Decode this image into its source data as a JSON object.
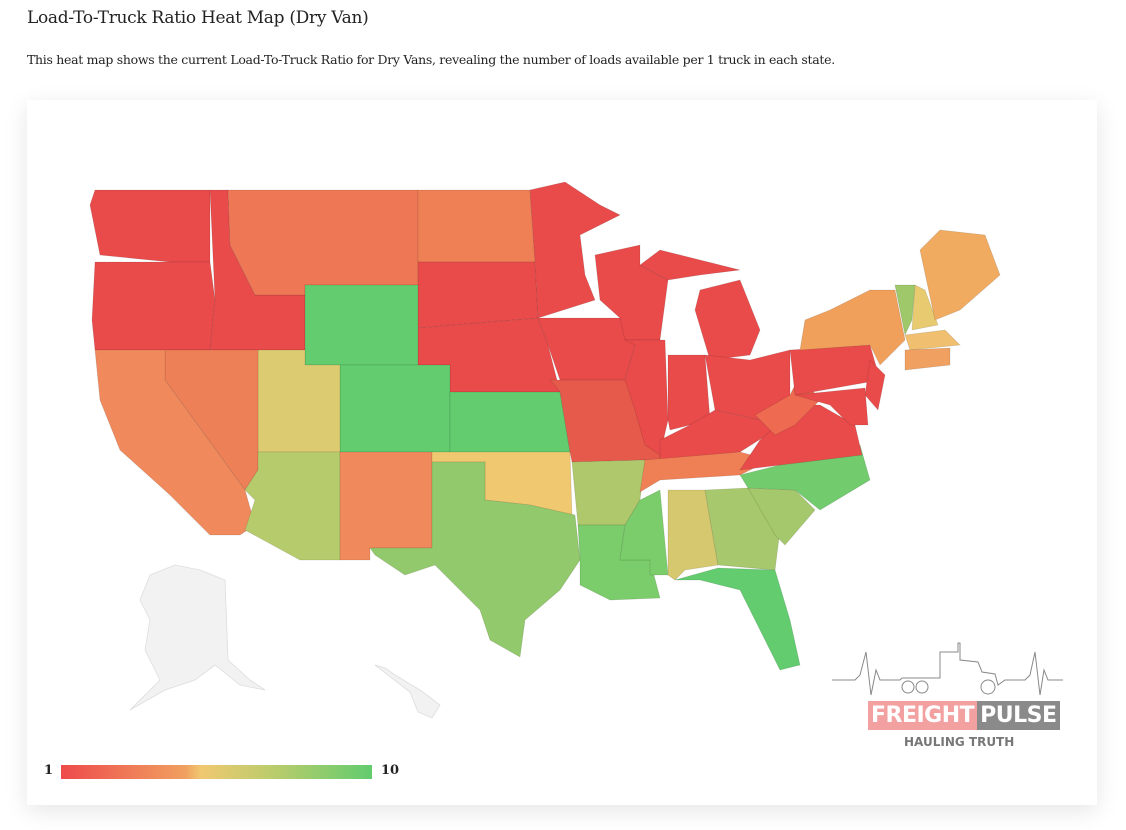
{
  "header": {
    "title": "Load-To-Truck Ratio Heat Map (Dry Van)",
    "description": "This heat map shows the current Load-To-Truck Ratio for Dry Vans, revealing the number of loads available per 1 truck in each state."
  },
  "legend": {
    "min": "1",
    "max": "10",
    "colors": [
      "#ee4b4b",
      "#f0c870",
      "#62cc6e"
    ]
  },
  "logo": {
    "word1": "FREIGHT",
    "word2": "PULSE",
    "tagline": "HAULING TRUTH"
  },
  "states": {
    "WA": "#e94b4b",
    "OR": "#e94b4b",
    "ID": "#e94b4b",
    "MT": "#ee7755",
    "ND": "#ef8055",
    "SD": "#e94b4b",
    "NE": "#e94b4b",
    "WY": "#62cc6e",
    "CO": "#62cc6e",
    "KS": "#62cc6e",
    "UT": "#dccb70",
    "NV": "#ee8058",
    "CA": "#f08a5d",
    "AZ": "#b6cc6c",
    "NM": "#f08a5d",
    "OK": "#f0c870",
    "TX": "#92c96c",
    "MN": "#e94b4b",
    "IA": "#e94b4b",
    "MO": "#e55a4a",
    "AR": "#b0c86c",
    "LA": "#7bcc6a",
    "WI": "#e94b4b",
    "IL": "#e94b4b",
    "MI": "#e94b4b",
    "MIU": "#e94b4b",
    "IN": "#e94b4b",
    "OH": "#e94b4b",
    "KY": "#e94b4b",
    "TN": "#ef8055",
    "MS": "#7bcc6a",
    "AL": "#d6c86e",
    "GA": "#a7c86c",
    "FL": "#62cc6e",
    "SC": "#a6c86c",
    "NC": "#72cc6e",
    "VA": "#e94b4b",
    "WV": "#ee6a50",
    "PA": "#e94b4b",
    "NY": "#f0a05a",
    "NJ": "#e94b4b",
    "MD": "#e94b4b",
    "VT": "#9ec86a",
    "NH": "#e8cb70",
    "ME": "#f0ab60",
    "MA": "#f0c070",
    "CT": "#f0a060",
    "AK": "#f2f2f2",
    "HI": "#f2f2f2"
  }
}
